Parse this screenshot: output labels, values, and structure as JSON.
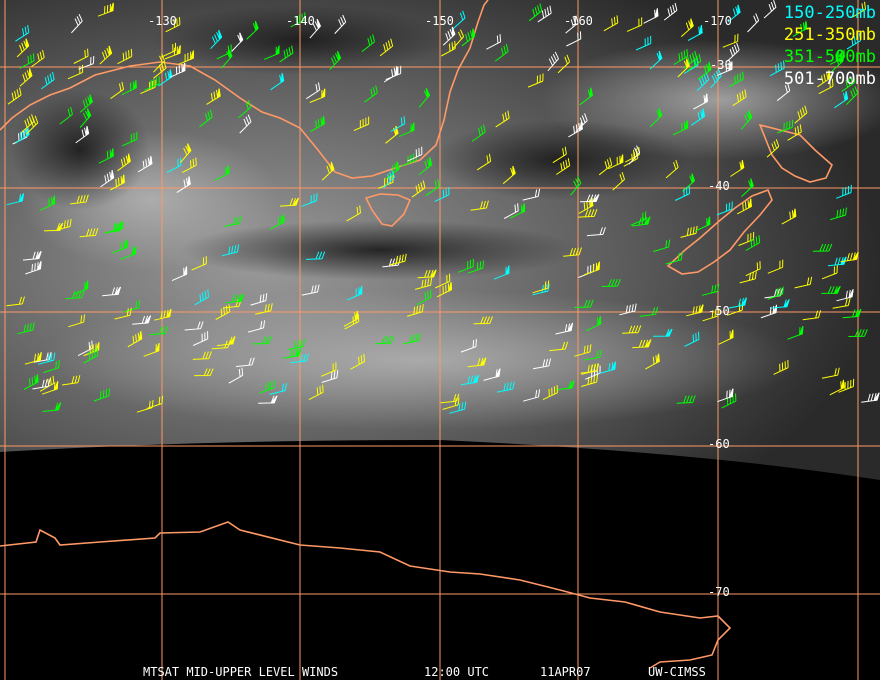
{
  "legend": [
    {
      "label": "150-250mb",
      "color": "#00ffff"
    },
    {
      "label": "251-350mb",
      "color": "#ffff00"
    },
    {
      "label": "351-500mb",
      "color": "#00ff00"
    },
    {
      "label": "501-700mb",
      "color": "#ffffff"
    }
  ],
  "longitude_labels": [
    "-130",
    "-140",
    "-150",
    "-160",
    "-170"
  ],
  "latitude_labels": [
    "-30",
    "-40",
    "-50",
    "-60",
    "-70"
  ],
  "caption": {
    "product": "MTSAT MID-UPPER LEVEL WINDS",
    "time": "12:00 UTC",
    "date": "11APR07",
    "source": "UW-CIMSS"
  },
  "colors": {
    "grid": "#ff9966",
    "coastline": "#ff9966",
    "no_data": "#000000"
  }
}
